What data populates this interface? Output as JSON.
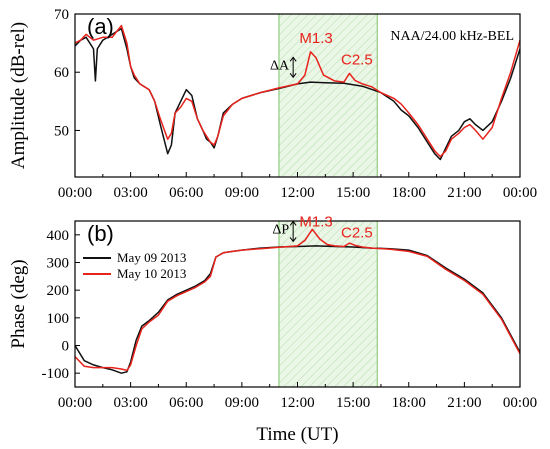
{
  "colors": {
    "series_black": "#111111",
    "series_red": "#e8231c",
    "shade_fill": "#eaf6e6",
    "shade_stroke": "#7cc36b",
    "axis": "#000000"
  },
  "chart_data": [
    {
      "type": "line",
      "panel_label": "(a)",
      "ylabel": "Amplitude (dB-rel)",
      "xlabel": "",
      "station_label": "NAA/24.00 kHz-BEL",
      "xlim": [
        0,
        24
      ],
      "ylim": [
        42,
        70
      ],
      "yticks": [
        50,
        60,
        70
      ],
      "xticks": [
        0,
        3,
        6,
        9,
        12,
        15,
        18,
        21,
        24
      ],
      "xtick_labels": [
        "00:00",
        "03:00",
        "06:00",
        "09:00",
        "12:00",
        "15:00",
        "18:00",
        "21:00",
        "00:00"
      ],
      "shaded_interval": [
        11,
        16.3
      ],
      "annotations": [
        {
          "text": "M1.3",
          "x": 13.0,
          "y": 65.0,
          "color": "red"
        },
        {
          "text": "C2.5",
          "x": 15.2,
          "y": 61.3,
          "color": "red"
        },
        {
          "text": "ΔA",
          "x": 11.55,
          "y": 60.5,
          "color": "black"
        }
      ],
      "series": [
        {
          "color_key": "series_black",
          "x": [
            0,
            0.3,
            0.6,
            1.0,
            1.1,
            1.2,
            1.5,
            2.0,
            2.5,
            2.8,
            3.0,
            3.2,
            3.5,
            4.0,
            4.3,
            4.6,
            5.0,
            5.2,
            5.4,
            5.7,
            6.0,
            6.3,
            6.6,
            6.9,
            7.1,
            7.3,
            7.5,
            7.7,
            8.0,
            8.5,
            9.0,
            10.0,
            11.0,
            12.0,
            12.7,
            13.5,
            14.5,
            15.5,
            16.5,
            17.2,
            17.6,
            18.0,
            18.5,
            19.0,
            19.4,
            19.7,
            20.0,
            20.3,
            20.7,
            21.0,
            21.3,
            21.6,
            22.0,
            22.5,
            23.0,
            23.5,
            24.0
          ],
          "y": [
            64.5,
            65.5,
            66.0,
            64.0,
            58.5,
            64.0,
            65.5,
            66.5,
            67.5,
            64.0,
            61.0,
            59.0,
            58.0,
            57.0,
            55.0,
            51.0,
            46.0,
            47.5,
            53.0,
            55.0,
            57.0,
            56.0,
            52.0,
            50.0,
            48.5,
            48.0,
            47.0,
            49.0,
            53.0,
            54.5,
            55.5,
            56.5,
            57.2,
            58.0,
            58.3,
            58.2,
            58.1,
            57.6,
            56.5,
            55.0,
            53.5,
            52.5,
            50.5,
            48.0,
            46.0,
            45.0,
            47.0,
            49.0,
            50.0,
            51.5,
            52.0,
            51.0,
            50.0,
            51.5,
            55.0,
            59.0,
            64.0
          ]
        },
        {
          "color_key": "series_red",
          "x": [
            0,
            0.3,
            0.6,
            1.0,
            1.5,
            2.0,
            2.5,
            2.8,
            3.0,
            3.2,
            3.5,
            4.0,
            4.3,
            4.6,
            5.0,
            5.2,
            5.4,
            5.7,
            6.0,
            6.3,
            6.6,
            6.9,
            7.1,
            7.3,
            7.5,
            7.7,
            8.0,
            8.5,
            9.0,
            10.0,
            11.0,
            12.0,
            12.4,
            12.7,
            13.0,
            13.4,
            14.0,
            14.5,
            14.8,
            15.1,
            15.5,
            16.0,
            16.5,
            17.2,
            17.6,
            18.0,
            18.5,
            19.0,
            19.4,
            19.7,
            20.0,
            20.3,
            20.7,
            21.0,
            21.3,
            21.6,
            22.0,
            22.5,
            23.0,
            23.5,
            24.0
          ],
          "y": [
            65.0,
            65.5,
            66.5,
            65.5,
            66.0,
            66.0,
            68.0,
            65.0,
            61.0,
            59.5,
            58.0,
            57.0,
            55.0,
            52.0,
            48.5,
            49.5,
            53.0,
            54.0,
            55.5,
            55.0,
            52.0,
            50.0,
            49.0,
            48.0,
            47.5,
            49.0,
            52.5,
            54.5,
            55.5,
            56.5,
            57.3,
            58.0,
            59.5,
            63.5,
            62.5,
            59.5,
            58.5,
            58.3,
            59.8,
            58.6,
            58.0,
            57.5,
            56.5,
            55.5,
            54.5,
            53.0,
            51.0,
            48.5,
            46.5,
            45.5,
            46.5,
            48.5,
            49.5,
            50.5,
            51.0,
            50.0,
            48.5,
            50.5,
            55.5,
            60.0,
            65.5
          ]
        }
      ]
    },
    {
      "type": "line",
      "panel_label": "(b)",
      "ylabel": "Phase (deg)",
      "xlabel": "Time (UT)",
      "xlim": [
        0,
        24
      ],
      "ylim": [
        -150,
        450
      ],
      "yticks": [
        -100,
        0,
        100,
        200,
        300,
        400
      ],
      "xticks": [
        0,
        3,
        6,
        9,
        12,
        15,
        18,
        21,
        24
      ],
      "xtick_labels": [
        "00:00",
        "03:00",
        "06:00",
        "09:00",
        "12:00",
        "15:00",
        "18:00",
        "21:00",
        "00:00"
      ],
      "shaded_interval": [
        11,
        16.3
      ],
      "legend_position": "top-left",
      "annotations": [
        {
          "text": "M1.3",
          "x": 13.0,
          "y": 430,
          "color": "red"
        },
        {
          "text": "C2.5",
          "x": 15.2,
          "y": 390,
          "color": "red"
        },
        {
          "text": "ΔP",
          "x": 11.55,
          "y": 405,
          "color": "black"
        }
      ],
      "series": [
        {
          "name": "May 09 2013",
          "color_key": "series_black",
          "x": [
            0,
            0.5,
            1.0,
            1.5,
            2.0,
            2.5,
            2.8,
            3.0,
            3.3,
            3.6,
            4.0,
            4.5,
            5.0,
            5.5,
            6.0,
            6.5,
            7.0,
            7.3,
            7.6,
            8.0,
            8.5,
            9.0,
            10.0,
            11.0,
            12.0,
            13.0,
            14.0,
            15.0,
            16.0,
            17.0,
            18.0,
            19.0,
            20.0,
            21.0,
            22.0,
            23.0,
            24.0
          ],
          "y": [
            0,
            -55,
            -70,
            -80,
            -88,
            -100,
            -95,
            -60,
            20,
            70,
            90,
            120,
            165,
            185,
            200,
            215,
            235,
            260,
            320,
            335,
            340,
            345,
            352,
            356,
            358,
            360,
            358,
            356,
            352,
            350,
            345,
            325,
            280,
            240,
            190,
            100,
            -25
          ]
        },
        {
          "name": "May 10 2013",
          "color_key": "series_red",
          "x": [
            0,
            0.5,
            1.0,
            1.5,
            2.0,
            2.5,
            2.8,
            3.0,
            3.3,
            3.6,
            4.0,
            4.5,
            5.0,
            5.5,
            6.0,
            6.5,
            7.0,
            7.3,
            7.6,
            8.0,
            8.5,
            9.0,
            10.0,
            11.0,
            12.0,
            12.4,
            12.8,
            13.2,
            13.6,
            14.0,
            14.5,
            14.8,
            15.1,
            15.5,
            16.0,
            17.0,
            18.0,
            19.0,
            20.0,
            21.0,
            22.0,
            23.0,
            24.0
          ],
          "y": [
            -40,
            -75,
            -80,
            -80,
            -80,
            -85,
            -90,
            -70,
            0,
            60,
            85,
            110,
            160,
            180,
            195,
            210,
            230,
            250,
            320,
            335,
            340,
            345,
            350,
            355,
            360,
            380,
            420,
            385,
            365,
            360,
            358,
            370,
            362,
            356,
            352,
            348,
            340,
            322,
            275,
            235,
            185,
            95,
            -30
          ]
        }
      ]
    }
  ]
}
